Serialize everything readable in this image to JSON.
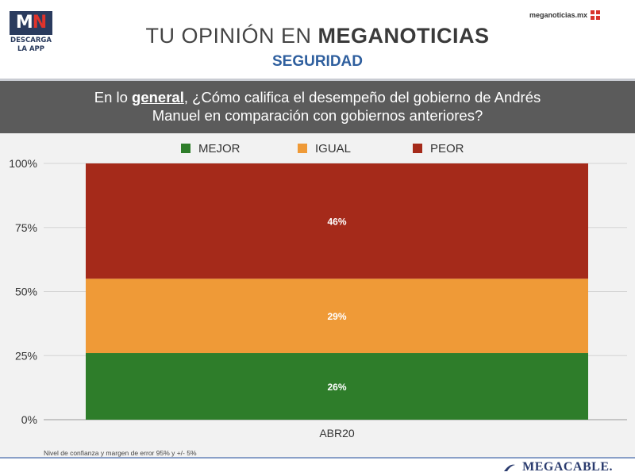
{
  "header": {
    "logo_mark_left": "M",
    "logo_mark_right": "N",
    "logo_line1": "DESCARGA",
    "logo_line2": "LA APP",
    "site_url": "meganoticias.mx",
    "title_light": "TU OPINIÓN EN",
    "title_bold": "MEGANOTICIAS",
    "subtitle": "SEGURIDAD"
  },
  "question": {
    "part1": "En lo",
    "emphasis": "general",
    "part2": ", ¿Cómo califica el desempeño del gobierno de Andrés",
    "line2": "Manuel en comparación con gobiernos anteriores?"
  },
  "footnote": "Nivel de confianza y margen de error 95% y +/- 5%",
  "brand": "MEGACABLE.",
  "colors": {
    "mejor": "#2e7d2a",
    "igual": "#ef9a37",
    "peor": "#a52a1a"
  },
  "chart_data": {
    "type": "bar",
    "stacked": true,
    "categories": [
      "ABR20"
    ],
    "series": [
      {
        "name": "MEJOR",
        "values": [
          26
        ],
        "label": "26%",
        "color": "#2e7d2a"
      },
      {
        "name": "IGUAL",
        "values": [
          29
        ],
        "label": "29%",
        "color": "#ef9a37"
      },
      {
        "name": "PEOR",
        "values": [
          46
        ],
        "label": "46%",
        "color": "#a52a1a"
      }
    ],
    "ylim": [
      0,
      100
    ],
    "yticks": [
      "0%",
      "25%",
      "50%",
      "75%",
      "100%"
    ],
    "ytick_values": [
      0,
      25,
      50,
      75,
      100
    ],
    "legend_position": "top-center",
    "grid": true
  }
}
